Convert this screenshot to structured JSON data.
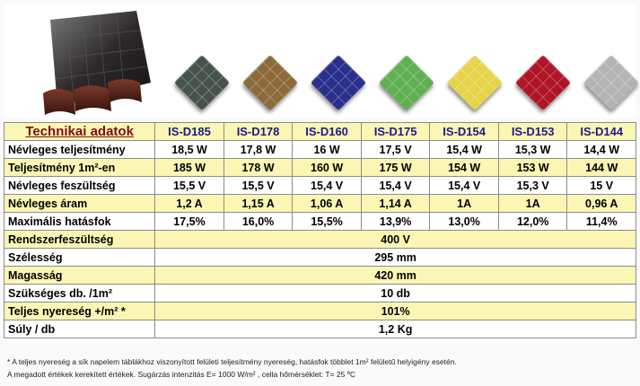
{
  "header": {
    "title": "Technikai adatok"
  },
  "tile_colors": [
    "#46524a",
    "#8c6a3a",
    "#2a2f8c",
    "#5fb050",
    "#e8d44a",
    "#b01427",
    "#b4b4b4"
  ],
  "models": [
    "IS-D185",
    "IS-D178",
    "IS-D160",
    "IS-D175",
    "IS-D154",
    "IS-D153",
    "IS-D144"
  ],
  "rows": [
    {
      "label": "Névleges teljesítmény",
      "values": [
        "18,5 W",
        "17,8 W",
        "16 W",
        "17,5 V",
        "15,4 W",
        "15,3 W",
        "14,4 W"
      ]
    },
    {
      "label": "Teljesítmény 1m²-en",
      "values": [
        "185 W",
        "178 W",
        "160 W",
        "175 W",
        "154 W",
        "153 W",
        "144 W"
      ]
    },
    {
      "label": "Névleges feszültség",
      "values": [
        "15,5 V",
        "15,5 V",
        "15,4 V",
        "15,4 V",
        "15,4 V",
        "15,3 V",
        "15 V"
      ]
    },
    {
      "label": "Névleges áram",
      "values": [
        "1,2 A",
        "1,15 A",
        "1,06 A",
        "1,14 A",
        "1A",
        "1A",
        "0,96 A"
      ]
    },
    {
      "label": "Maximális hatásfok",
      "values": [
        "17,5%",
        "16,0%",
        "15,5%",
        "13,9%",
        "13,0%",
        "12,0%",
        "11,4%"
      ]
    }
  ],
  "common_rows": [
    {
      "label": "Rendszerfeszültség",
      "value": "400 V"
    },
    {
      "label": "Szélesség",
      "value": "295 mm"
    },
    {
      "label": "Magasság",
      "value": "420 mm"
    },
    {
      "label": "Szükséges db. /1m²",
      "value": "10 db"
    },
    {
      "label": "Teljes nyereség +/m² *",
      "value": "101%"
    },
    {
      "label": "Súly / db",
      "value": "1,2 Kg"
    }
  ],
  "footnotes": [
    "* A teljes nyereség a sík napelem táblákhoz viszonyított felületi teljesítmény nyereség, hatásfok többlet 1m² felületű helyigény esetén.",
    "A megadott értékek kerekített értékek. Sugárzás intenzitás E= 1000 W/m² , cella hőmérséklet: T= 25 ºC"
  ]
}
